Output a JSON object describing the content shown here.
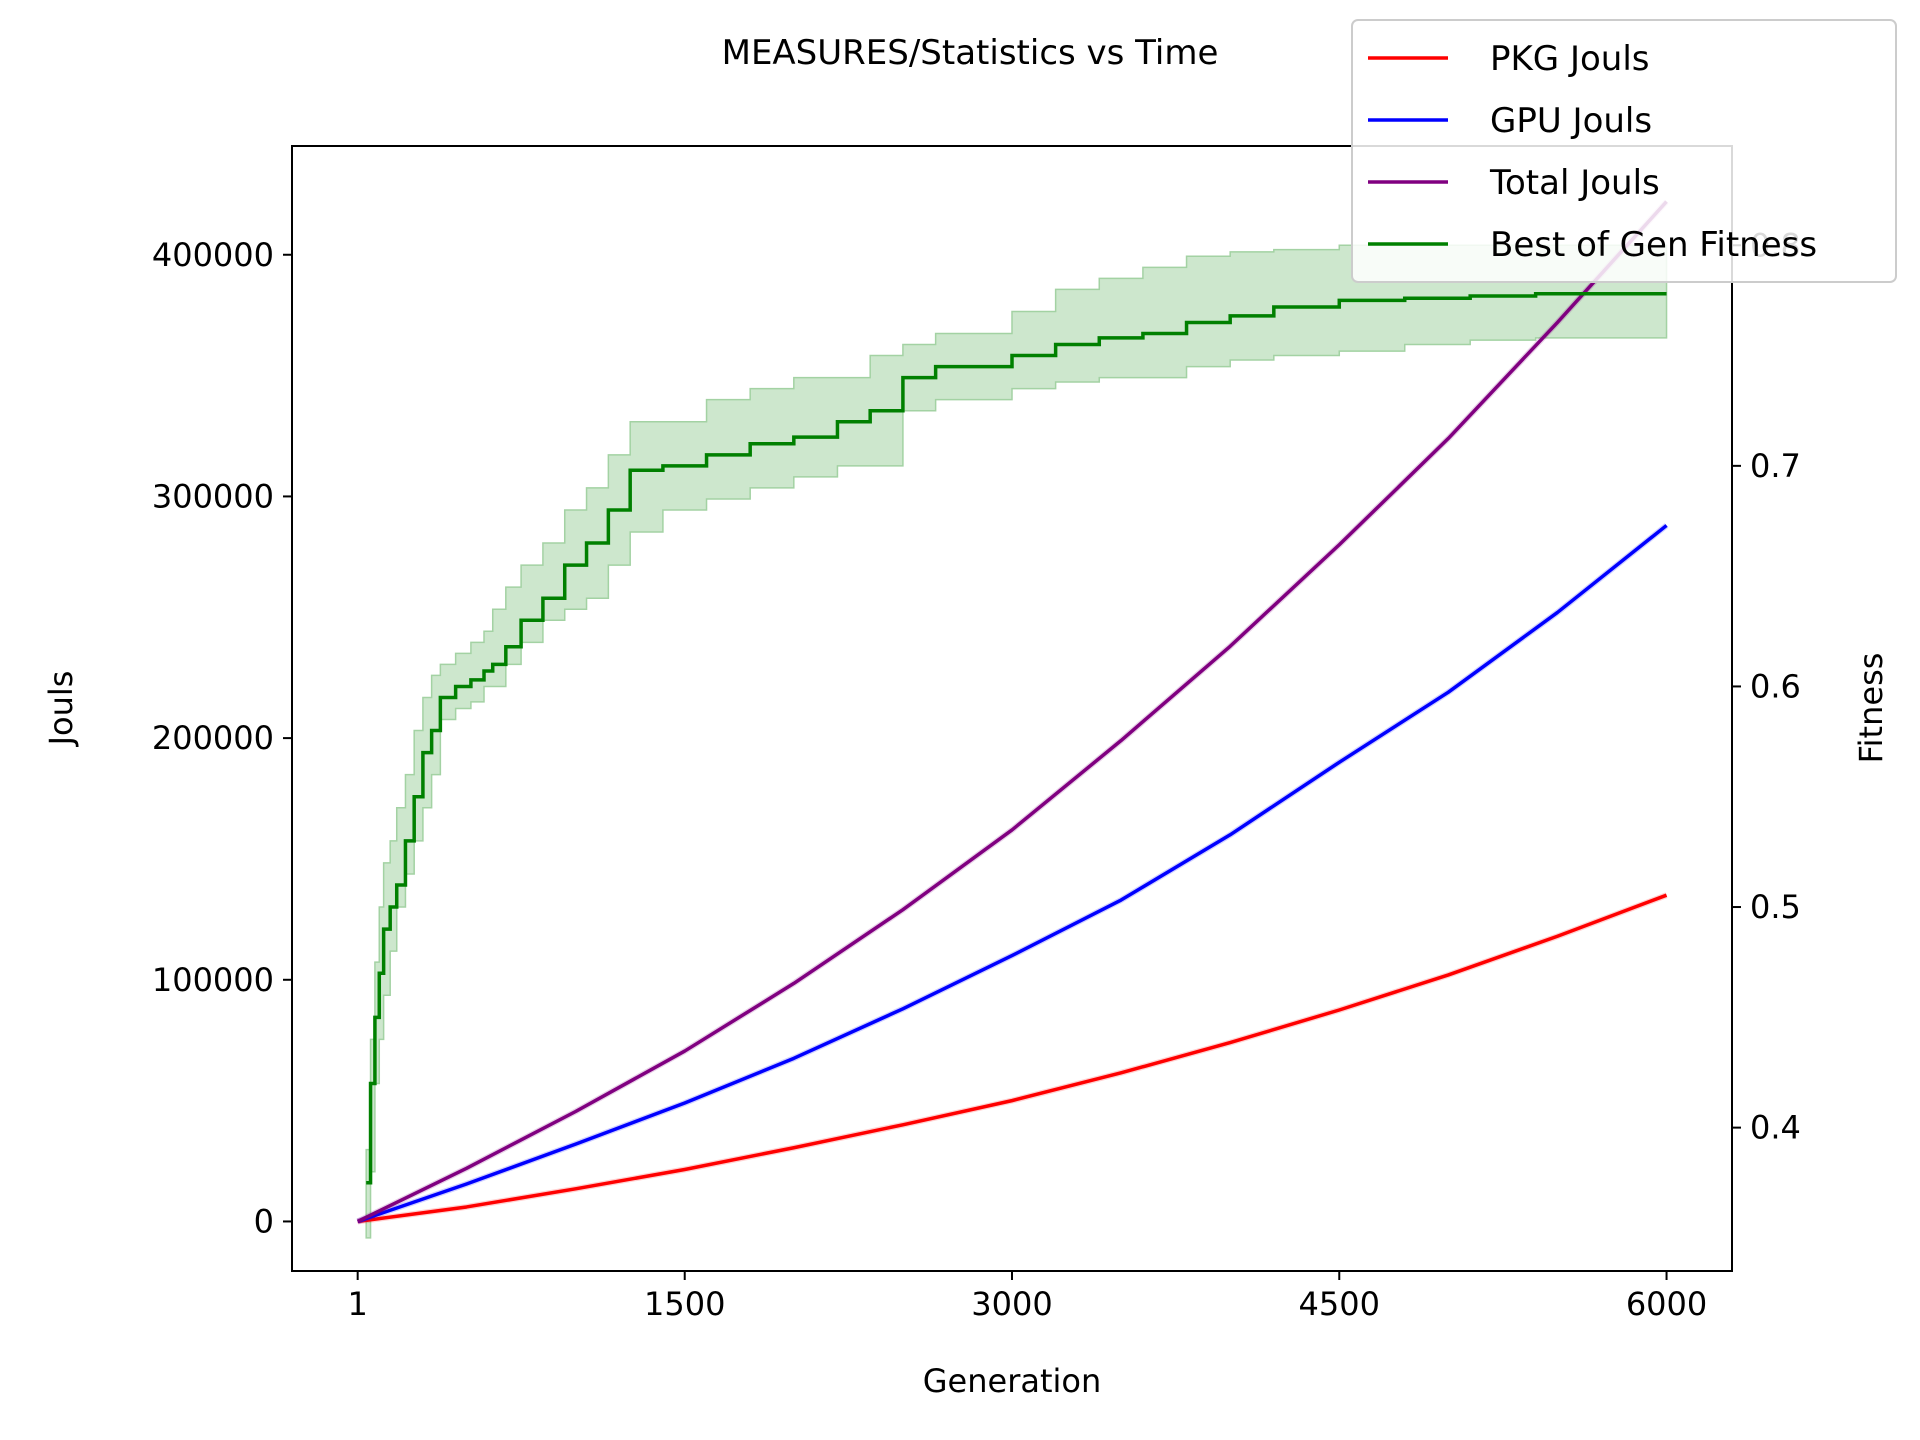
{
  "chart_data": {
    "type": "line",
    "title": "MEASURES/Statistics vs Time",
    "xlabel": "Generation",
    "ylabel": "Jouls",
    "y2label": "Fitness",
    "xlim": [
      -300,
      6300
    ],
    "ylim": [
      -20500,
      445000
    ],
    "y2lim": [
      0.335,
      0.845
    ],
    "xticks": [
      1,
      1500,
      3000,
      4500,
      6000
    ],
    "yticks": [
      0,
      100000,
      200000,
      300000,
      400000
    ],
    "y2ticks": [
      0.4,
      0.5,
      0.6,
      0.7,
      0.8
    ],
    "grid": false,
    "legend_position": "top-right",
    "colors": {
      "pkg": "#ff0000",
      "gpu": "#0000ff",
      "total": "#800080",
      "fitness": "#008000",
      "fitness_band": "#cde7cd"
    },
    "series": [
      {
        "name": "PKG Jouls",
        "axis": "left",
        "color": "#ff0000",
        "x": [
          1,
          500,
          1000,
          1500,
          2000,
          2500,
          3000,
          3500,
          4000,
          4500,
          5000,
          5500,
          6000
        ],
        "y": [
          0,
          6000,
          13500,
          21500,
          30500,
          40000,
          50000,
          61500,
          74000,
          87500,
          102000,
          118000,
          135000
        ]
      },
      {
        "name": "GPU Jouls",
        "axis": "left",
        "color": "#0000ff",
        "x": [
          1,
          500,
          1000,
          1500,
          2000,
          2500,
          3000,
          3500,
          4000,
          4500,
          5000,
          5500,
          6000
        ],
        "y": [
          0,
          15500,
          32000,
          49000,
          67500,
          88000,
          110000,
          133000,
          160000,
          190000,
          219000,
          252000,
          288000
        ]
      },
      {
        "name": "Total Jouls",
        "axis": "left",
        "color": "#800080",
        "x": [
          1,
          500,
          1000,
          1500,
          2000,
          2500,
          3000,
          3500,
          4000,
          4500,
          5000,
          5500,
          6000
        ],
        "y": [
          0,
          22000,
          45500,
          70500,
          98500,
          129000,
          162000,
          199000,
          238000,
          280000,
          324000,
          372000,
          422000
        ]
      },
      {
        "name": "Best of Gen Fitness",
        "axis": "right",
        "color": "#008000",
        "x": [
          40,
          60,
          80,
          100,
          120,
          150,
          180,
          220,
          260,
          300,
          340,
          380,
          450,
          520,
          580,
          620,
          680,
          750,
          850,
          950,
          1050,
          1150,
          1250,
          1400,
          1600,
          1800,
          2000,
          2200,
          2350,
          2500,
          2650,
          2800,
          3000,
          3200,
          3400,
          3600,
          3800,
          4000,
          4200,
          4500,
          4800,
          5100,
          5400,
          5700,
          6000
        ],
        "y": [
          0.375,
          0.42,
          0.45,
          0.47,
          0.49,
          0.5,
          0.51,
          0.53,
          0.55,
          0.57,
          0.58,
          0.595,
          0.6,
          0.603,
          0.607,
          0.61,
          0.618,
          0.63,
          0.64,
          0.655,
          0.665,
          0.68,
          0.698,
          0.7,
          0.705,
          0.71,
          0.713,
          0.72,
          0.725,
          0.74,
          0.745,
          0.745,
          0.75,
          0.755,
          0.758,
          0.76,
          0.765,
          0.768,
          0.772,
          0.775,
          0.776,
          0.777,
          0.778,
          0.778,
          0.778
        ],
        "y_lower": [
          0.35,
          0.38,
          0.42,
          0.44,
          0.46,
          0.48,
          0.5,
          0.515,
          0.53,
          0.545,
          0.56,
          0.585,
          0.59,
          0.593,
          0.6,
          0.6,
          0.61,
          0.62,
          0.63,
          0.635,
          0.64,
          0.655,
          0.67,
          0.68,
          0.685,
          0.69,
          0.695,
          0.7,
          0.7,
          0.725,
          0.73,
          0.73,
          0.735,
          0.738,
          0.74,
          0.74,
          0.745,
          0.748,
          0.75,
          0.752,
          0.755,
          0.757,
          0.758,
          0.758,
          0.758
        ],
        "y_upper": [
          0.39,
          0.44,
          0.475,
          0.5,
          0.52,
          0.53,
          0.545,
          0.56,
          0.58,
          0.595,
          0.605,
          0.61,
          0.615,
          0.62,
          0.625,
          0.635,
          0.645,
          0.655,
          0.665,
          0.68,
          0.69,
          0.705,
          0.72,
          0.72,
          0.73,
          0.735,
          0.74,
          0.74,
          0.75,
          0.755,
          0.76,
          0.76,
          0.77,
          0.78,
          0.785,
          0.79,
          0.795,
          0.797,
          0.798,
          0.8,
          0.8,
          0.8,
          0.8,
          0.8,
          0.8
        ]
      }
    ]
  }
}
